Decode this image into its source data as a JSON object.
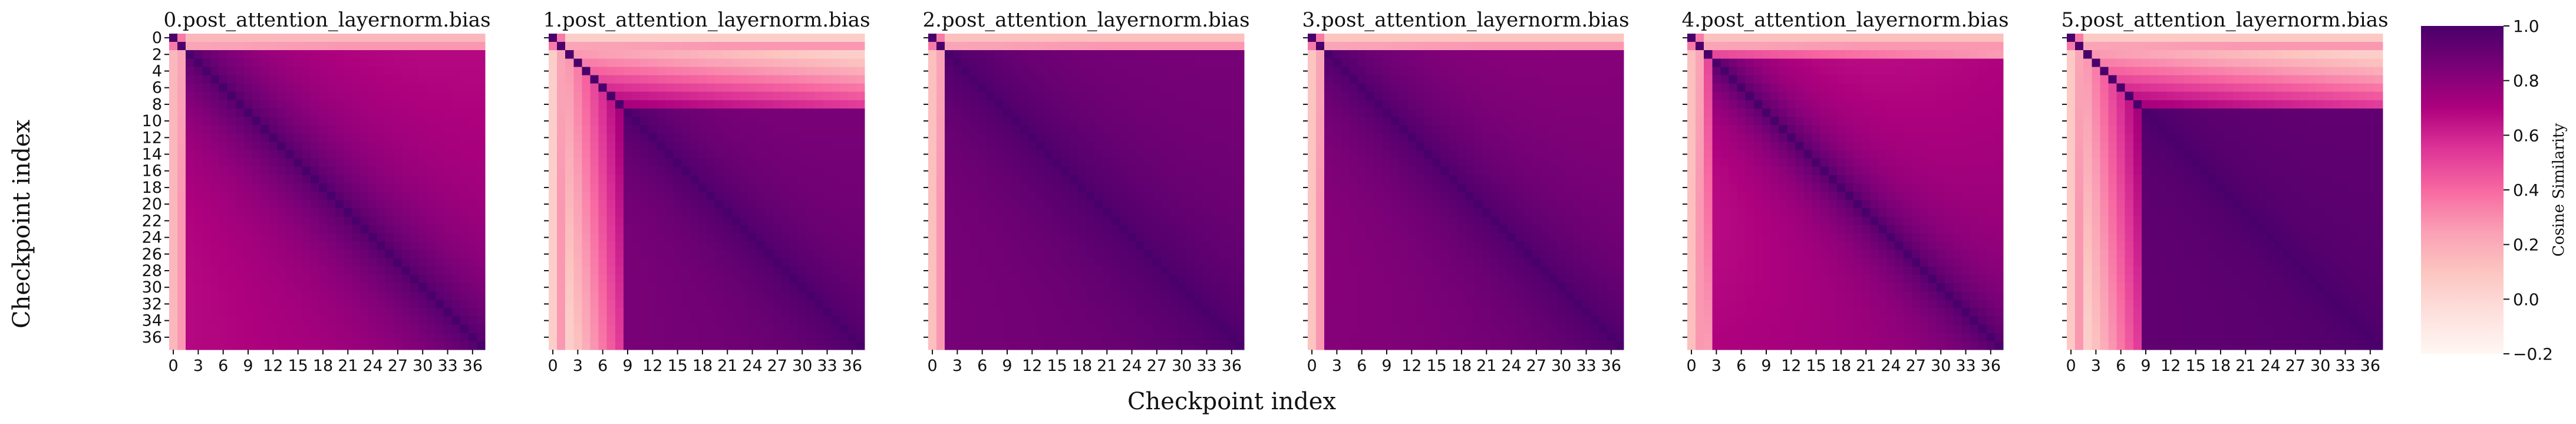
{
  "chart_data": {
    "type": "heatmap",
    "xlabel": "Checkpoint index",
    "ylabel": "Checkpoint index",
    "n": 38,
    "x_ticks": [
      0,
      3,
      6,
      9,
      12,
      15,
      18,
      21,
      24,
      27,
      30,
      33,
      36
    ],
    "y_ticks": [
      0,
      2,
      4,
      6,
      8,
      10,
      12,
      14,
      16,
      18,
      20,
      22,
      24,
      26,
      28,
      30,
      32,
      34,
      36
    ],
    "colorbar": {
      "label": "Cosine Similarity",
      "min": -0.2,
      "max": 1.0,
      "ticks": [
        "1.0",
        "0.8",
        "0.6",
        "0.4",
        "0.2",
        "0.0",
        "−0.2"
      ],
      "colormap": [
        "#fff7f3",
        "#fde0dd",
        "#fcc5c0",
        "#fa9fb5",
        "#f768a1",
        "#dd3497",
        "#ae017e",
        "#7a0177",
        "#49006a"
      ]
    },
    "panels": [
      {
        "title": "0.post_attention_layernorm.bias",
        "first_row_sim": 0.15,
        "early_edge": 2,
        "block_base": 0.72,
        "block_far": 0.62,
        "diag_width": 10
      },
      {
        "title": "1.post_attention_layernorm.bias",
        "first_row_sim": 0.05,
        "early_edge": 9,
        "block_base": 0.88,
        "block_far": 0.8,
        "diag_width": 8
      },
      {
        "title": "2.post_attention_layernorm.bias",
        "first_row_sim": 0.12,
        "early_edge": 2,
        "block_base": 0.88,
        "block_far": 0.82,
        "diag_width": 12
      },
      {
        "title": "3.post_attention_layernorm.bias",
        "first_row_sim": 0.1,
        "early_edge": 2,
        "block_base": 0.86,
        "block_far": 0.76,
        "diag_width": 10
      },
      {
        "title": "4.post_attention_layernorm.bias",
        "first_row_sim": 0.12,
        "early_edge": 3,
        "block_base": 0.78,
        "block_far": 0.6,
        "diag_width": 6
      },
      {
        "title": "5.post_attention_layernorm.bias",
        "first_row_sim": 0.08,
        "early_edge": 9,
        "block_base": 0.94,
        "block_far": 0.9,
        "diag_width": 8
      }
    ]
  }
}
